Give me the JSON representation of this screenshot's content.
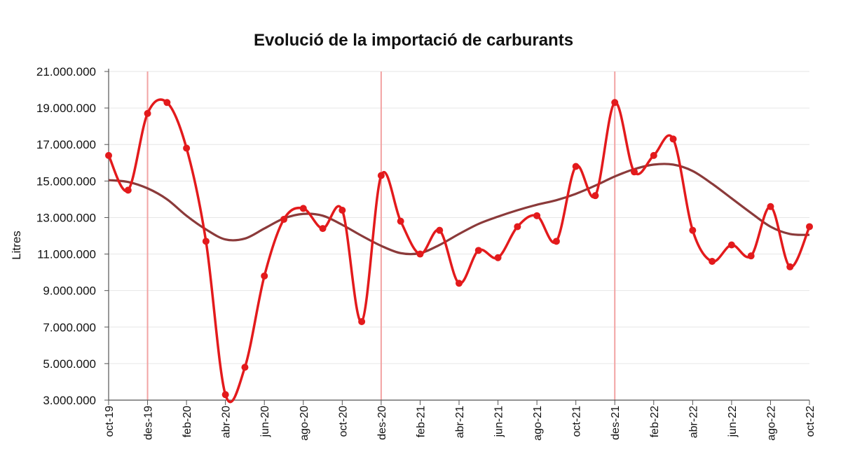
{
  "chart_data": {
    "type": "line",
    "title": "Evolució de la importació de carburants",
    "ylabel": "Litres",
    "xlabel": "",
    "ylim": [
      3000000,
      21000000
    ],
    "yticks": [
      3000000,
      5000000,
      7000000,
      9000000,
      11000000,
      13000000,
      15000000,
      17000000,
      19000000,
      21000000
    ],
    "ytick_labels": [
      "3.000.000",
      "5.000.000",
      "7.000.000",
      "9.000.000",
      "11.000.000",
      "13.000.000",
      "15.000.000",
      "17.000.000",
      "19.000.000",
      "21.000.000"
    ],
    "months": [
      "oct-19",
      "nov-19",
      "des-19",
      "gen-20",
      "feb-20",
      "mar-20",
      "abr-20",
      "mai-20",
      "jun-20",
      "jul-20",
      "ago-20",
      "set-20",
      "oct-20",
      "nov-20",
      "des-20",
      "gen-21",
      "feb-21",
      "mar-21",
      "abr-21",
      "mai-21",
      "jun-21",
      "jul-21",
      "ago-21",
      "set-21",
      "oct-21",
      "nov-21",
      "des-21",
      "gen-22",
      "feb-22",
      "mar-22",
      "abr-22",
      "mai-22",
      "jun-22",
      "jul-22",
      "ago-22",
      "set-22",
      "oct-22"
    ],
    "xtick_labels": [
      "oct-19",
      "des-19",
      "feb-20",
      "abr-20",
      "jun-20",
      "ago-20",
      "oct-20",
      "des-20",
      "feb-21",
      "abr-21",
      "jun-21",
      "ago-21",
      "oct-21",
      "des-21",
      "feb-22",
      "abr-22",
      "jun-22",
      "ago-22",
      "oct-22"
    ],
    "vertical_markers": [
      "des-19",
      "des-20",
      "des-21"
    ],
    "grid": true,
    "series": [
      {
        "color": "#e31a1c",
        "markers": true,
        "values": [
          16400000,
          14500000,
          18700000,
          19300000,
          16800000,
          11700000,
          3300000,
          4800000,
          9800000,
          12900000,
          13500000,
          12400000,
          13400000,
          7300000,
          15300000,
          12800000,
          11000000,
          12300000,
          9400000,
          11200000,
          10800000,
          12500000,
          13100000,
          11700000,
          15800000,
          14200000,
          19300000,
          15500000,
          16400000,
          17300000,
          12300000,
          10600000,
          11500000,
          10900000,
          13600000,
          10300000,
          12500000
        ]
      },
      {
        "color": "#8b3a3a",
        "markers": false,
        "values": [
          15050000,
          14950000,
          14600000,
          14000000,
          13100000,
          12350000,
          11800000,
          11850000,
          12400000,
          12950000,
          13200000,
          13100000,
          12600000,
          12000000,
          11450000,
          11050000,
          11050000,
          11500000,
          12100000,
          12650000,
          13050000,
          13400000,
          13700000,
          13950000,
          14300000,
          14750000,
          15250000,
          15650000,
          15900000,
          15900000,
          15550000,
          14850000,
          14050000,
          13250000,
          12500000,
          12100000,
          12050000
        ]
      }
    ]
  }
}
